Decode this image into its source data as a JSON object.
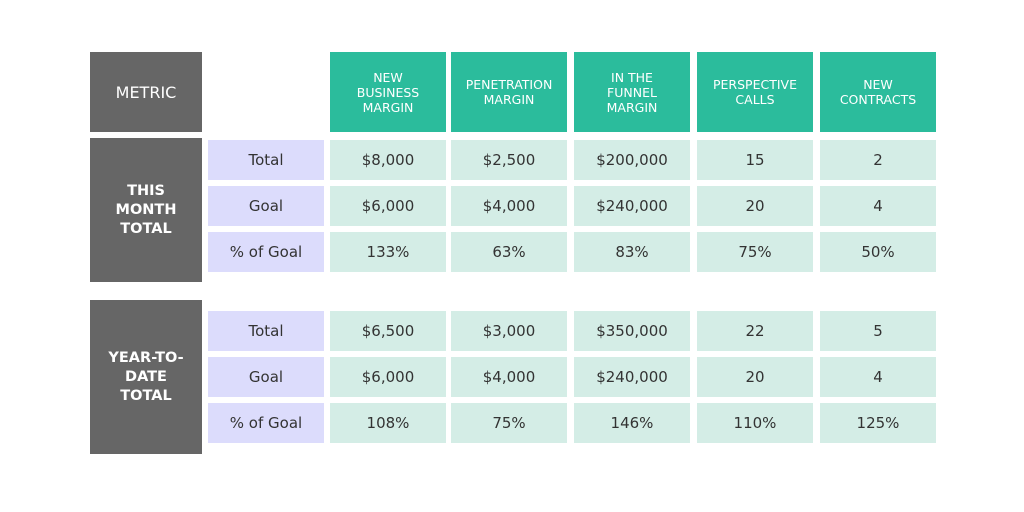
{
  "header": {
    "metric": "METRIC",
    "columns": [
      "NEW BUSINESS MARGIN",
      "PENETRATION MARGIN",
      "IN THE FUNNEL MARGIN",
      "PERSPECTIVE CALLS",
      "NEW CONTRACTS"
    ]
  },
  "groups": [
    {
      "label": "THIS MONTH TOTAL",
      "rows": [
        {
          "label": "Total",
          "values": [
            "$8,000",
            "$2,500",
            "$200,000",
            "15",
            "2"
          ]
        },
        {
          "label": "Goal",
          "values": [
            "$6,000",
            "$4,000",
            "$240,000",
            "20",
            "4"
          ]
        },
        {
          "label": "% of Goal",
          "values": [
            "133%",
            "63%",
            "83%",
            "75%",
            "50%"
          ]
        }
      ]
    },
    {
      "label": "YEAR-TO-DATE TOTAL",
      "rows": [
        {
          "label": "Total",
          "values": [
            "$6,500",
            "$3,000",
            "$350,000",
            "22",
            "5"
          ]
        },
        {
          "label": "Goal",
          "values": [
            "$6,000",
            "$4,000",
            "$240,000",
            "20",
            "4"
          ]
        },
        {
          "label": "% of Goal",
          "values": [
            "108%",
            "75%",
            "146%",
            "110%",
            "125%"
          ]
        }
      ]
    }
  ]
}
